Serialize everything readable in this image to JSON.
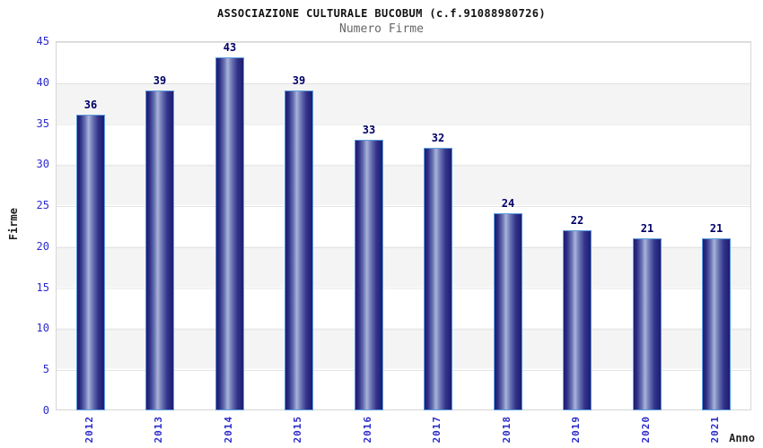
{
  "chart_data": {
    "type": "bar",
    "title": "ASSOCIAZIONE CULTURALE BUCOBUM (c.f.91088980726)",
    "subtitle": "Numero Firme",
    "xlabel": "Anno",
    "ylabel": "Firme",
    "categories": [
      "2012",
      "2013",
      "2014",
      "2015",
      "2016",
      "2017",
      "2018",
      "2019",
      "2020",
      "2021"
    ],
    "values": [
      36,
      39,
      43,
      39,
      33,
      32,
      24,
      22,
      21,
      21
    ],
    "ylim": [
      0,
      45
    ],
    "yticks": [
      0,
      5,
      10,
      15,
      20,
      25,
      30,
      35,
      40,
      45
    ],
    "grid": "horizontal-bands-alternating",
    "legend": "none",
    "colors": {
      "title_color": "#111111",
      "subtitle_color": "#666666",
      "tick_color": "#2b2bcc",
      "value_color": "#000066",
      "axis_label_color": "#222222",
      "bar_dark": "#1c1c72",
      "bar_light": "#aab3d8",
      "bar_border": "#5b9cdd",
      "band_color": "#f4f4f4",
      "grid_color": "#e4e4e4"
    }
  }
}
